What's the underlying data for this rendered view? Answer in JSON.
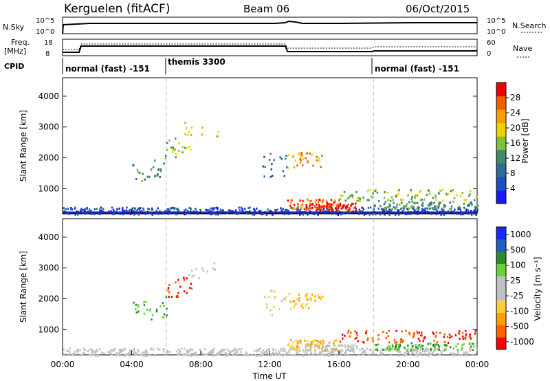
{
  "header": {
    "station": "Kerguelen (fitACF)",
    "beam": "Beam 06",
    "date": "06/Oct/2015"
  },
  "labels": {
    "nsky": "N.Sky",
    "nsearch": "N.Search",
    "freq_top": "Freq.",
    "freq_unit": "[MHz]",
    "nave": "Nave",
    "cpid": "CPID",
    "nsky_top_tick": "10^5",
    "nsky_bottom_tick": "10^0",
    "freq_top_tick": "18",
    "freq_bottom_tick": "8",
    "nave_top_tick": "60",
    "nave_bottom_tick": "0"
  },
  "cpid_segments": [
    {
      "label": "normal (fast) -151",
      "start": "00:00"
    },
    {
      "label": "themis 3300",
      "start": "06:00"
    },
    {
      "label": "normal (fast) -151",
      "start": "18:00"
    }
  ],
  "colors": {
    "power_scale": [
      "#1a1aff",
      "#1f4fbf",
      "#2e6e96",
      "#3f8a6a",
      "#7fbf3a",
      "#f0d000",
      "#f5a000",
      "#f06000",
      "#f00000"
    ],
    "velocity_scale": [
      "#ff0000",
      "#ff6000",
      "#ffa000",
      "#ffd030",
      "#c0c0c0",
      "#c0c0c0",
      "#6ad03a",
      "#2e8a2e",
      "#1f5fbf",
      "#1a2aff"
    ]
  },
  "chart_data": [
    {
      "type": "heatmap",
      "title": "Power",
      "ylabel": "Slant Range [km]",
      "yticks": [
        "1000",
        "2000",
        "3000",
        "4000"
      ],
      "ylim": [
        180,
        4600
      ],
      "colorbar_label": "Power [dB]",
      "colorbar_ticks": [
        "4",
        "8",
        "12",
        "16",
        "20",
        "24",
        "28"
      ],
      "colorbar_range": [
        0,
        32
      ]
    },
    {
      "type": "heatmap",
      "title": "Velocity",
      "ylabel": "Slant Range [km]",
      "yticks": [
        "1000",
        "2000",
        "3000",
        "4000"
      ],
      "ylim": [
        180,
        4600
      ],
      "xlabel": "Time UT",
      "xticks": [
        "00:00",
        "04:00",
        "08:00",
        "12:00",
        "16:00",
        "20:00",
        "00:00"
      ],
      "colorbar_label": "Velocity [m s⁻¹]",
      "colorbar_ticks": [
        "1000",
        "500",
        "100",
        "25",
        "-25",
        "-100",
        "-500",
        "-1000"
      ]
    }
  ]
}
